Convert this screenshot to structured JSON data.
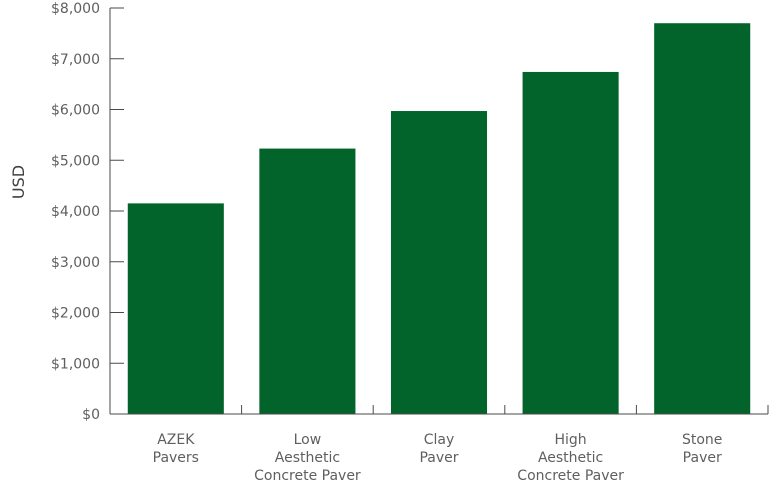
{
  "chart_data": {
    "type": "bar",
    "title": "",
    "xlabel": "",
    "ylabel": "USD",
    "categories": [
      [
        "AZEK",
        "Pavers"
      ],
      [
        "Low",
        "Aesthetic",
        "Concrete Paver"
      ],
      [
        "Clay",
        "Paver"
      ],
      [
        "High",
        "Aesthetic",
        "Concrete Paver"
      ],
      [
        "Stone",
        "Paver"
      ]
    ],
    "values": [
      4150,
      5230,
      5970,
      6740,
      7700
    ],
    "ylim": [
      0,
      8000
    ],
    "yticks": [
      0,
      1000,
      2000,
      3000,
      4000,
      5000,
      6000,
      7000,
      8000
    ],
    "ytick_labels": [
      "$0",
      "$1,000",
      "$2,000",
      "$3,000",
      "$4,000",
      "$5,000",
      "$6,000",
      "$7,000",
      "$8,000"
    ],
    "bar_color": "#02642a",
    "grid": false,
    "legend": "none"
  }
}
